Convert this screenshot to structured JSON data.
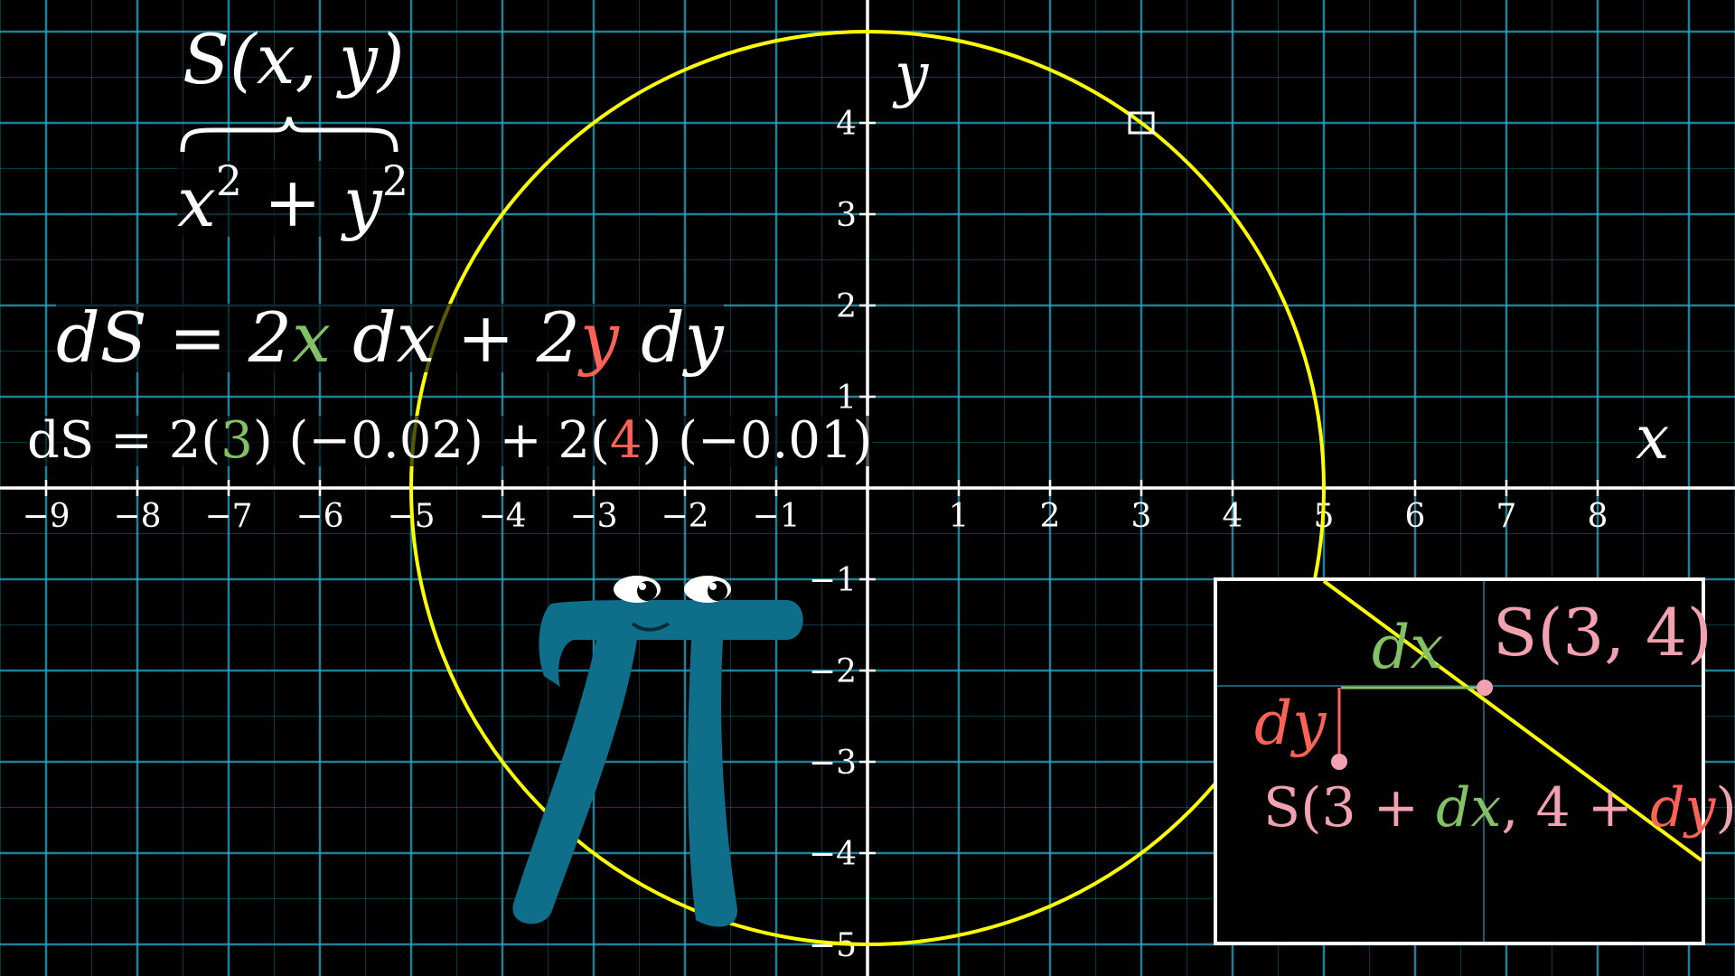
{
  "axes": {
    "x_label": "x",
    "y_label": "y",
    "x_ticks": [
      "−9",
      "−8",
      "−7",
      "−6",
      "−5",
      "−4",
      "−3",
      "−2",
      "−1",
      "1",
      "2",
      "3",
      "4",
      "5",
      "6",
      "7",
      "8"
    ],
    "y_ticks": [
      "4",
      "3",
      "2",
      "1",
      "−1",
      "−2",
      "−3",
      "−4",
      "−5"
    ]
  },
  "colors": {
    "grid": "#29abca",
    "circle": "#ffff00",
    "green": "#83c167",
    "red": "#fc6255",
    "pink": "#f2a1b0",
    "character": "#0f6e8a"
  },
  "circle_radius": 5,
  "highlight_point": [
    3,
    4
  ],
  "equations": {
    "s_xy": "S(x, y)",
    "sum_x": "x",
    "sum_exp1": "2",
    "sum_plus": " + ",
    "sum_y": "y",
    "sum_exp2": "2",
    "ds_lhs": "dS = 2",
    "ds_x": "x",
    "ds_mid": " dx + 2",
    "ds_y": "y",
    "ds_end": " dy",
    "num_lhs": "dS = 2(",
    "num_3": "3",
    "num_mid": ") (−0.02) + 2(",
    "num_4": "4",
    "num_end": ") (−0.01)"
  },
  "inset": {
    "point_label": "S(3, 4)",
    "dx_label": "dx",
    "dy_label": "dy",
    "moved_a": "S(3 + ",
    "moved_dx": "dx",
    "moved_b": ", 4 + ",
    "moved_dy": "dy",
    "moved_c": ")"
  },
  "character": {
    "name": "pi-creature"
  }
}
